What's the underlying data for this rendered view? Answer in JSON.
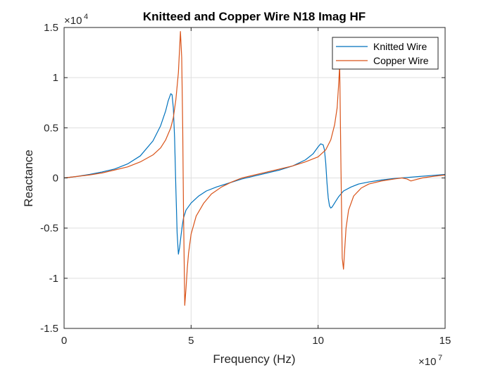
{
  "chart_data": {
    "type": "line",
    "title": "Knitteed and Copper Wire N18 Imag HF",
    "xlabel": "Frequency (Hz)",
    "ylabel": "Reactance",
    "xlim": [
      0,
      150000000
    ],
    "ylim": [
      -15000,
      15000
    ],
    "x_multiplier": "×10",
    "x_exponent": "7",
    "y_multiplier": "×10",
    "y_exponent": "4",
    "x_ticks": [
      0,
      50000000,
      100000000,
      150000000
    ],
    "x_tick_labels": [
      "0",
      "5",
      "10",
      "15"
    ],
    "y_ticks": [
      -15000,
      -10000,
      -5000,
      0,
      5000,
      10000,
      15000
    ],
    "y_tick_labels": [
      "-1.5",
      "-1",
      "-0.5",
      "0",
      "0.5",
      "1",
      "1.5"
    ],
    "grid": true,
    "legend_position": "top-right",
    "series": [
      {
        "name": "Knitted Wire",
        "color": "#0072BD",
        "x": [
          0,
          5000000,
          10000000,
          15000000,
          20000000,
          25000000,
          30000000,
          35000000,
          38000000,
          40000000,
          41000000,
          42000000,
          42500000,
          43000000,
          43500000,
          44000000,
          44500000,
          45000000,
          45500000,
          46000000,
          46500000,
          47000000,
          48000000,
          50000000,
          53000000,
          56000000,
          60000000,
          65000000,
          70000000,
          75000000,
          80000000,
          85000000,
          90000000,
          95000000,
          98000000,
          100000000,
          101000000,
          102000000,
          102500000,
          103000000,
          103500000,
          104000000,
          104500000,
          105000000,
          105500000,
          106000000,
          107000000,
          108000000,
          110000000,
          113000000,
          116000000,
          120000000,
          125000000,
          130000000,
          135000000,
          140000000,
          145000000,
          150000000
        ],
        "y": [
          0,
          150,
          350,
          600,
          900,
          1400,
          2200,
          3700,
          5200,
          6700,
          7700,
          8400,
          8300,
          7000,
          4000,
          -1000,
          -5500,
          -7600,
          -6900,
          -5800,
          -4800,
          -4000,
          -3200,
          -2500,
          -1800,
          -1300,
          -900,
          -500,
          -100,
          200,
          500,
          800,
          1200,
          1800,
          2400,
          3100,
          3400,
          3300,
          2800,
          1500,
          -500,
          -2000,
          -2800,
          -3000,
          -2900,
          -2700,
          -2300,
          -1900,
          -1300,
          -900,
          -600,
          -400,
          -200,
          -50,
          50,
          150,
          250,
          350
        ]
      },
      {
        "name": "Copper Wire",
        "color": "#D95319",
        "x": [
          0,
          5000000,
          10000000,
          15000000,
          20000000,
          25000000,
          30000000,
          35000000,
          38000000,
          40000000,
          42000000,
          43000000,
          44000000,
          45000000,
          45800000,
          46300000,
          46700000,
          47000000,
          47500000,
          48000000,
          48500000,
          49000000,
          50000000,
          52000000,
          55000000,
          58000000,
          62000000,
          66000000,
          70000000,
          75000000,
          80000000,
          85000000,
          90000000,
          95000000,
          100000000,
          103000000,
          105000000,
          106500000,
          107500000,
          108000000,
          108500000,
          109000000,
          109500000,
          110000000,
          110500000,
          111000000,
          112000000,
          114000000,
          117000000,
          120000000,
          125000000,
          130000000,
          133000000,
          135000000,
          136500000,
          138000000,
          141000000,
          145000000,
          150000000
        ],
        "y": [
          0,
          150,
          300,
          500,
          800,
          1100,
          1600,
          2300,
          3000,
          3800,
          5000,
          6000,
          7800,
          10500,
          14600,
          12000,
          5000,
          -3000,
          -12700,
          -11000,
          -9000,
          -7500,
          -5600,
          -3800,
          -2500,
          -1600,
          -900,
          -400,
          0,
          300,
          600,
          900,
          1200,
          1600,
          2100,
          2800,
          3800,
          5300,
          7000,
          9000,
          11200,
          1000,
          -8000,
          -9100,
          -7000,
          -5000,
          -3200,
          -1800,
          -1000,
          -600,
          -300,
          -100,
          0,
          -100,
          -300,
          -200,
          0,
          150,
          300
        ]
      }
    ]
  }
}
